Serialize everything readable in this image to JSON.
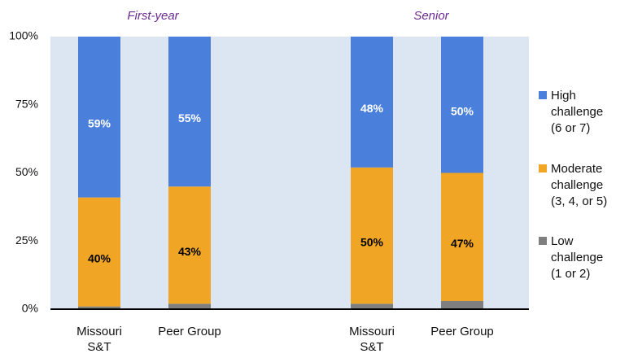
{
  "chart_data": {
    "type": "stacked_bar",
    "annotations": [
      "First-year",
      "Senior"
    ],
    "categories": [
      "Missouri\nS&T",
      "Peer Group",
      "Missouri\nS&T",
      "Peer Group"
    ],
    "series": [
      {
        "name": "High\nchallenge\n(6 or 7)",
        "color": "#4a80dc",
        "values": [
          59,
          55,
          48,
          50
        ],
        "value_labels": [
          "59%",
          "55%",
          "48%",
          "50%"
        ]
      },
      {
        "name": "Moderate\nchallenge\n(3, 4, or 5)",
        "color": "#f0a624",
        "values": [
          40,
          43,
          50,
          47
        ],
        "value_labels": [
          "40%",
          "43%",
          "50%",
          "47%"
        ]
      },
      {
        "name": "Low\nchallenge\n(1 or 2)",
        "color": "#7f7f7f",
        "values": [
          1,
          2,
          2,
          3
        ]
      }
    ],
    "ylim": [
      0,
      100
    ],
    "yticks": [
      {
        "value": 0,
        "label": "0%"
      },
      {
        "value": 25,
        "label": "25%"
      },
      {
        "value": 50,
        "label": "50%"
      },
      {
        "value": 75,
        "label": "75%"
      },
      {
        "value": 100,
        "label": "100%"
      }
    ],
    "grid": false,
    "legend": "right"
  }
}
